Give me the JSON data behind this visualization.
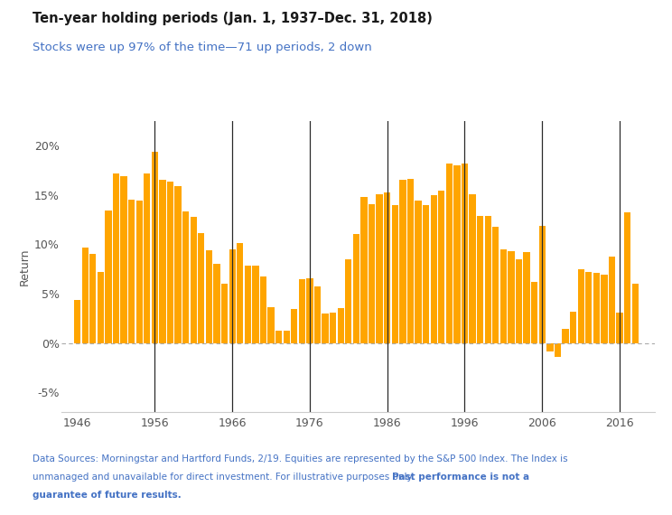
{
  "title": "Ten-year holding periods (Jan. 1, 1937–Dec. 31, 2018)",
  "subtitle": "Stocks were up 97% of the time—71 up periods, 2 down",
  "ylabel": "Return",
  "bar_color": "#FFA500",
  "vline_color": "#2a2a2a",
  "zero_line_color": "#aaaaaa",
  "background_color": "#ffffff",
  "footnote_color": "#4472C4",
  "title_color": "#1a1a1a",
  "axis_color": "#555555",
  "vlines": [
    1956,
    1966,
    1976,
    1986,
    1996,
    2006,
    2016
  ],
  "years": [
    1946,
    1947,
    1948,
    1949,
    1950,
    1951,
    1952,
    1953,
    1954,
    1955,
    1956,
    1957,
    1958,
    1959,
    1960,
    1961,
    1962,
    1963,
    1964,
    1965,
    1966,
    1967,
    1968,
    1969,
    1970,
    1971,
    1972,
    1973,
    1974,
    1975,
    1976,
    1977,
    1978,
    1979,
    1980,
    1981,
    1982,
    1983,
    1984,
    1985,
    1986,
    1987,
    1988,
    1989,
    1990,
    1991,
    1992,
    1993,
    1994,
    1995,
    1996,
    1997,
    1998,
    1999,
    2000,
    2001,
    2002,
    2003,
    2004,
    2005,
    2006,
    2007,
    2008,
    2009,
    2010,
    2011,
    2012,
    2013,
    2014,
    2015,
    2016,
    2017,
    2018
  ],
  "values": [
    4.4,
    9.7,
    9.0,
    7.2,
    13.4,
    17.2,
    16.9,
    14.5,
    14.4,
    17.2,
    19.4,
    16.5,
    16.4,
    15.9,
    13.3,
    12.8,
    11.1,
    9.4,
    8.0,
    6.0,
    9.5,
    10.1,
    7.8,
    7.8,
    6.7,
    3.6,
    1.2,
    1.2,
    3.4,
    6.5,
    6.6,
    5.7,
    3.0,
    3.1,
    3.5,
    8.5,
    11.0,
    14.8,
    14.1,
    15.1,
    15.3,
    14.0,
    16.5,
    16.6,
    14.4,
    14.0,
    15.0,
    15.4,
    18.2,
    18.0,
    18.2,
    15.1,
    12.9,
    12.9,
    11.8,
    9.5,
    9.3,
    8.5,
    9.2,
    6.2,
    11.9,
    -0.9,
    -1.4,
    1.4,
    3.2,
    7.5,
    7.2,
    7.1,
    6.9,
    8.8,
    3.1,
    13.2,
    6.0
  ],
  "xtick_positions": [
    1946,
    1956,
    1966,
    1976,
    1986,
    1996,
    2006,
    2016
  ],
  "ytick_positions": [
    -5,
    0,
    5,
    10,
    15,
    20
  ],
  "ylim": [
    -7.0,
    22.5
  ],
  "xlim": [
    1944.0,
    2020.5
  ],
  "fn_line1": "Data Sources: Morningstar and Hartford Funds, 2/19. Equities are represented by the S&P 500 Index. The Index is",
  "fn_line2_normal": "unmanaged and unavailable for direct investment. For illustrative purposes only. ",
  "fn_line2_bold": "Past performance is not a",
  "fn_line3_bold": "guarantee of future results."
}
